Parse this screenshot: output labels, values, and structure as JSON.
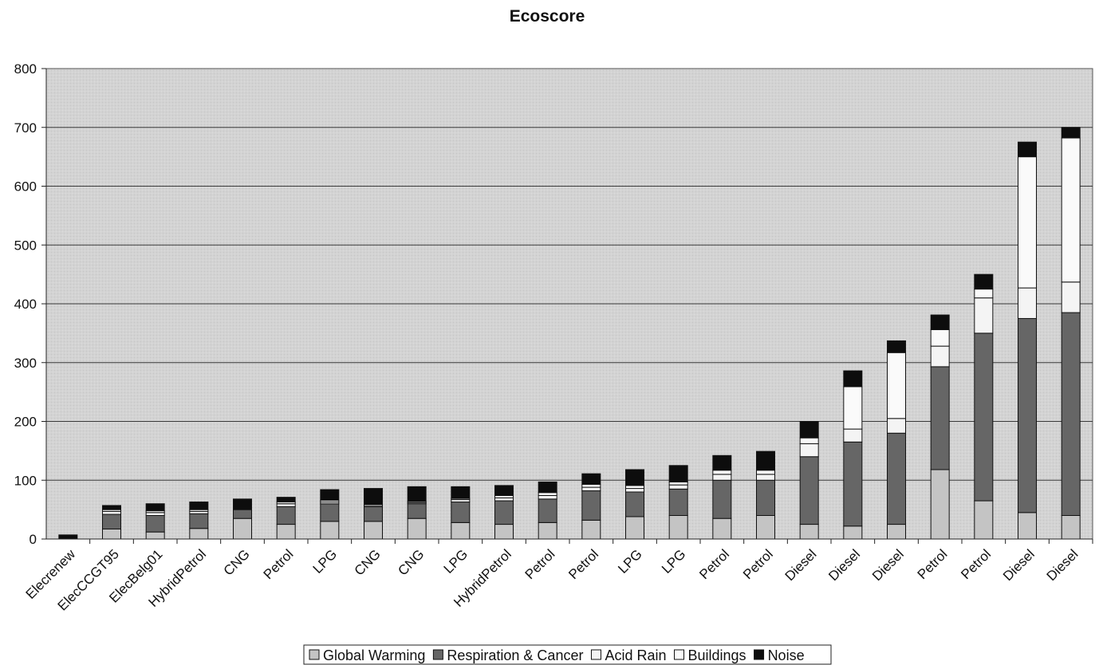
{
  "chart_data": {
    "type": "bar",
    "stacked": true,
    "title": "Ecoscore",
    "xlabel": "",
    "ylabel": "",
    "ylim": [
      0,
      800
    ],
    "yticks": [
      0,
      100,
      200,
      300,
      400,
      500,
      600,
      700,
      800
    ],
    "grid": true,
    "legend_position": "bottom",
    "categories": [
      "Elecrenew",
      "ElecCCGT95",
      "ElecBelg01",
      "HybridPetrol",
      "CNG",
      "Petrol",
      "LPG",
      "CNG",
      "CNG",
      "LPG",
      "HybridPetrol",
      "Petrol",
      "Petrol",
      "LPG",
      "LPG",
      "Petrol",
      "Petrol",
      "Diesel",
      "Diesel",
      "Diesel",
      "Petrol",
      "Petrol",
      "Diesel",
      "Diesel"
    ],
    "series": [
      {
        "name": "Global Warming",
        "color": "#c4c4c4",
        "values": [
          0,
          17,
          12,
          18,
          35,
          25,
          30,
          30,
          35,
          28,
          25,
          28,
          32,
          38,
          40,
          35,
          40,
          25,
          22,
          25,
          118,
          65,
          45,
          40
        ]
      },
      {
        "name": "Respiration & Cancer",
        "color": "#666666",
        "values": [
          0,
          25,
          28,
          25,
          15,
          30,
          30,
          25,
          25,
          35,
          40,
          40,
          50,
          42,
          45,
          65,
          60,
          115,
          143,
          155,
          175,
          285,
          330,
          345
        ]
      },
      {
        "name": "Acid Rain",
        "color": "#f4f4f4",
        "values": [
          0,
          5,
          5,
          4,
          0,
          5,
          3,
          2,
          2,
          4,
          5,
          6,
          6,
          6,
          7,
          10,
          10,
          22,
          22,
          25,
          35,
          60,
          52,
          52
        ]
      },
      {
        "name": "Buildings",
        "color": "#fafafa",
        "values": [
          0,
          3,
          3,
          3,
          0,
          3,
          3,
          2,
          2,
          2,
          4,
          5,
          5,
          5,
          5,
          7,
          7,
          10,
          72,
          112,
          28,
          15,
          223,
          245
        ]
      },
      {
        "name": "Noise",
        "color": "#0d0d0d",
        "values": [
          7,
          7,
          12,
          13,
          18,
          8,
          18,
          27,
          25,
          20,
          17,
          18,
          18,
          27,
          28,
          25,
          32,
          28,
          27,
          20,
          25,
          25,
          25,
          18
        ]
      }
    ]
  }
}
